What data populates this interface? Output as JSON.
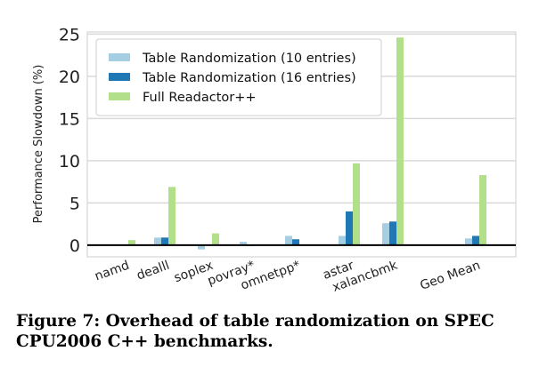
{
  "chart_data": {
    "type": "bar",
    "ylabel": "Performance Slowdown (%)",
    "ylim": [
      -1,
      25
    ],
    "yticks": [
      "0",
      "5",
      "10",
      "15",
      "20",
      "25"
    ],
    "categories": [
      "namd",
      "dealll",
      "soplex",
      "povray*",
      "omnetpp*",
      "astar",
      "xalancbmk",
      "Geo Mean"
    ],
    "series": [
      {
        "name": "Table Randomization (10 entries)",
        "color": "#a6cee3",
        "values": [
          0,
          0.9,
          -0.5,
          0.4,
          1.1,
          1.1,
          2.6,
          0.8
        ]
      },
      {
        "name": "Table Randomization (16 entries)",
        "color": "#1f78b4",
        "values": [
          0,
          0.9,
          0,
          -0.1,
          0.7,
          4.0,
          2.8,
          1.1
        ]
      },
      {
        "name": "Full Readactor++",
        "color": "#b2df8a",
        "values": [
          0.6,
          6.9,
          1.4,
          0,
          0,
          9.7,
          24.6,
          8.3
        ]
      }
    ],
    "grid": true,
    "legend_position": "top-left"
  },
  "caption": {
    "line1": "Figure 7:  Overhead of table randomization on SPEC",
    "line2": "CPU2006 C++ benchmarks."
  }
}
